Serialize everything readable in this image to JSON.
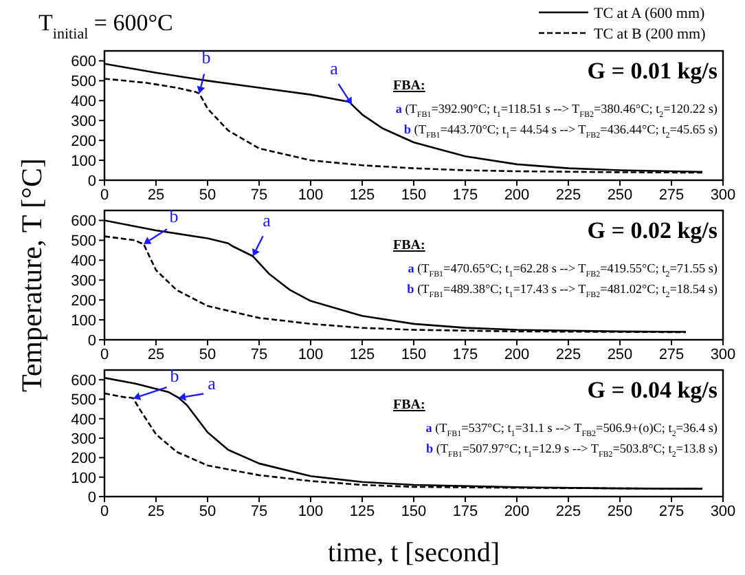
{
  "chart_data": [
    {
      "type": "line",
      "title": "T$_{initial}$ = 600°C",
      "legend": "top right",
      "marker": "none",
      "xlim": [
        0,
        300
      ],
      "xticks": [
        0,
        25,
        50,
        75,
        100,
        125,
        150,
        175,
        200,
        225,
        250,
        275,
        300
      ],
      "ylim": [
        0,
        650
      ],
      "yticks": [
        0,
        100,
        200,
        300,
        400,
        500,
        600
      ],
      "series": [
        {
          "name": "TC at A (600 mm)",
          "color": "#000000",
          "line_style": "solid",
          "x": [
            0,
            25,
            50,
            75,
            100,
            119,
            120,
            125,
            135,
            150,
            175,
            200,
            225,
            250,
            275,
            290
          ],
          "values": [
            585,
            540,
            500,
            465,
            430,
            393,
            380,
            330,
            260,
            190,
            120,
            80,
            60,
            50,
            45,
            42
          ]
        },
        {
          "name": "TC at B (200 mm)",
          "color": "#000000",
          "line_style": "dashed",
          "x": [
            0,
            20,
            35,
            44,
            46,
            50,
            60,
            75,
            100,
            125,
            150,
            175,
            200,
            250,
            290
          ],
          "values": [
            510,
            490,
            465,
            444,
            436,
            360,
            250,
            160,
            100,
            75,
            60,
            50,
            45,
            40,
            38
          ]
        }
      ],
      "annotations": [
        "G = 0.01 kg/s",
        "FBA:",
        "a (T$_{FB1}$=392.90°C; t$_{1}$=118.51 s --> T$_{FB2}$=380.46°C; t$_{2}$=120.22 s)",
        "b (T$_{FB1}$=443.70°C; t$_{1}$= 44.54 s --> T$_{FB2}$=436.44°C; t$_{2}$=45.65 s)",
        {
          "text": "a",
          "x": 120,
          "y": 380
        },
        {
          "text": "b",
          "x": 46,
          "y": 436
        }
      ]
    },
    {
      "type": "line",
      "ylabel": "Temperature, T [°C]",
      "marker": "none",
      "xlim": [
        0,
        300
      ],
      "xticks": [
        0,
        25,
        50,
        75,
        100,
        125,
        150,
        175,
        200,
        225,
        250,
        275,
        300
      ],
      "ylim": [
        0,
        650
      ],
      "yticks": [
        0,
        100,
        200,
        300,
        400,
        500,
        600
      ],
      "series": [
        {
          "color": "#000000",
          "line_style": "solid",
          "x": [
            0,
            25,
            50,
            60,
            62,
            72,
            80,
            90,
            100,
            125,
            150,
            175,
            200,
            250,
            282
          ],
          "values": [
            600,
            550,
            510,
            485,
            471,
            420,
            330,
            250,
            195,
            120,
            80,
            60,
            50,
            42,
            40
          ]
        },
        {
          "color": "#000000",
          "line_style": "dashed",
          "x": [
            0,
            15,
            17,
            19,
            25,
            35,
            50,
            75,
            100,
            125,
            150,
            200,
            282
          ],
          "values": [
            520,
            500,
            489,
            481,
            350,
            250,
            170,
            110,
            80,
            60,
            50,
            42,
            38
          ]
        }
      ],
      "annotations": [
        "G = 0.02 kg/s",
        "FBA:",
        "a (T$_{FB1}$=470.65°C; t$_{1}$=62.28 s --> T$_{FB2}$=419.55°C; t$_{2}$=71.55 s)",
        "b (T$_{FB1}$=489.38°C; t$_{1}$=17.43 s --> T$_{FB2}$=481.02°C; t$_{2}$=18.54 s)",
        {
          "text": "a",
          "x": 72,
          "y": 420
        },
        {
          "text": "b",
          "x": 19,
          "y": 481
        }
      ]
    },
    {
      "type": "line",
      "xlabel": "time, t [second]",
      "marker": "none",
      "xlim": [
        0,
        300
      ],
      "xticks": [
        0,
        25,
        50,
        75,
        100,
        125,
        150,
        175,
        200,
        225,
        250,
        275,
        300
      ],
      "ylim": [
        0,
        650
      ],
      "yticks": [
        0,
        100,
        200,
        300,
        400,
        500,
        600
      ],
      "series": [
        {
          "color": "#000000",
          "line_style": "solid",
          "x": [
            0,
            15,
            31,
            36,
            40,
            50,
            60,
            75,
            100,
            125,
            150,
            200,
            250,
            290
          ],
          "values": [
            610,
            580,
            537,
            507,
            470,
            330,
            240,
            170,
            105,
            75,
            60,
            48,
            42,
            40
          ]
        },
        {
          "color": "#000000",
          "line_style": "dashed",
          "x": [
            0,
            10,
            13,
            14,
            17,
            25,
            35,
            50,
            75,
            100,
            125,
            150,
            200,
            290
          ],
          "values": [
            530,
            510,
            508,
            504,
            450,
            320,
            230,
            160,
            110,
            80,
            60,
            50,
            45,
            40
          ]
        }
      ],
      "annotations": [
        "G = 0.04 kg/s",
        "FBA:",
        "a (T$_{FB1}$=537°C; t$_{1}$=31.1 s --> T$_{FB2}$=506.9+(o)C; t$_{2}$=36.4 s)",
        "b (T$_{FB1}$=507.97°C; t$_{1}$=12.9 s --> T$_{FB2}$=503.8°C; t$_{2}$=13.8 s)",
        {
          "text": "a",
          "x": 36,
          "y": 507
        },
        {
          "text": "b",
          "x": 14,
          "y": 504
        }
      ]
    }
  ]
}
